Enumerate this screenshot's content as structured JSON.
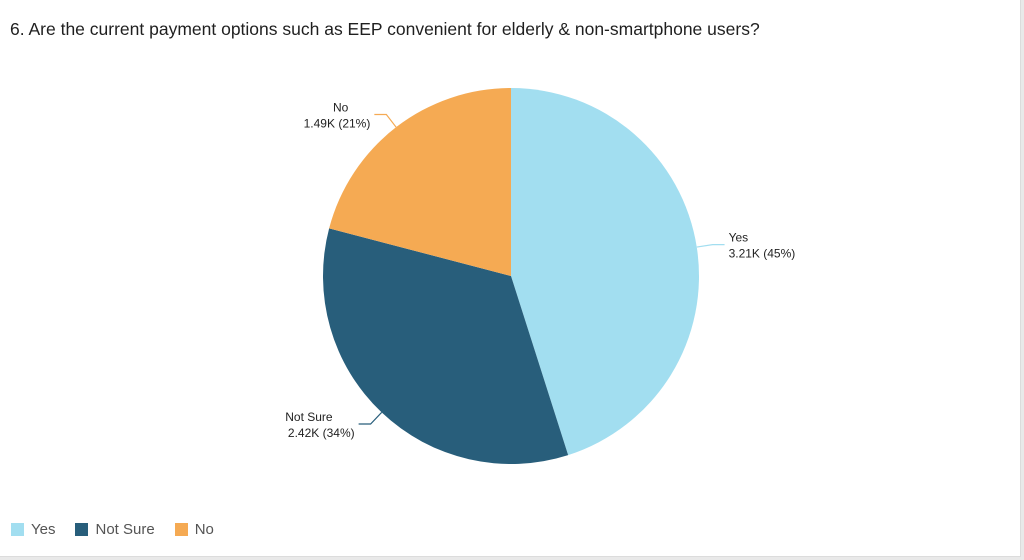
{
  "title": "6. Are the current payment options such as EEP convenient for elderly & non-smartphone users?",
  "chart_data": {
    "type": "pie",
    "title": "6. Are the current payment options such as EEP convenient for elderly & non-smartphone users?",
    "legend_position": "bottom-left",
    "slices": [
      {
        "label": "Yes",
        "value": 3.21,
        "value_label": "3.21K",
        "percent": 45,
        "color": "#a2def0"
      },
      {
        "label": "Not Sure",
        "value": 2.42,
        "value_label": "2.42K",
        "percent": 34,
        "color": "#285e7b"
      },
      {
        "label": "No",
        "value": 1.49,
        "value_label": "1.49K",
        "percent": 21,
        "color": "#f5aa53"
      }
    ]
  },
  "legend": [
    {
      "label": "Yes",
      "color": "#a2def0"
    },
    {
      "label": "Not Sure",
      "color": "#285e7b"
    },
    {
      "label": "No",
      "color": "#f5aa53"
    }
  ]
}
